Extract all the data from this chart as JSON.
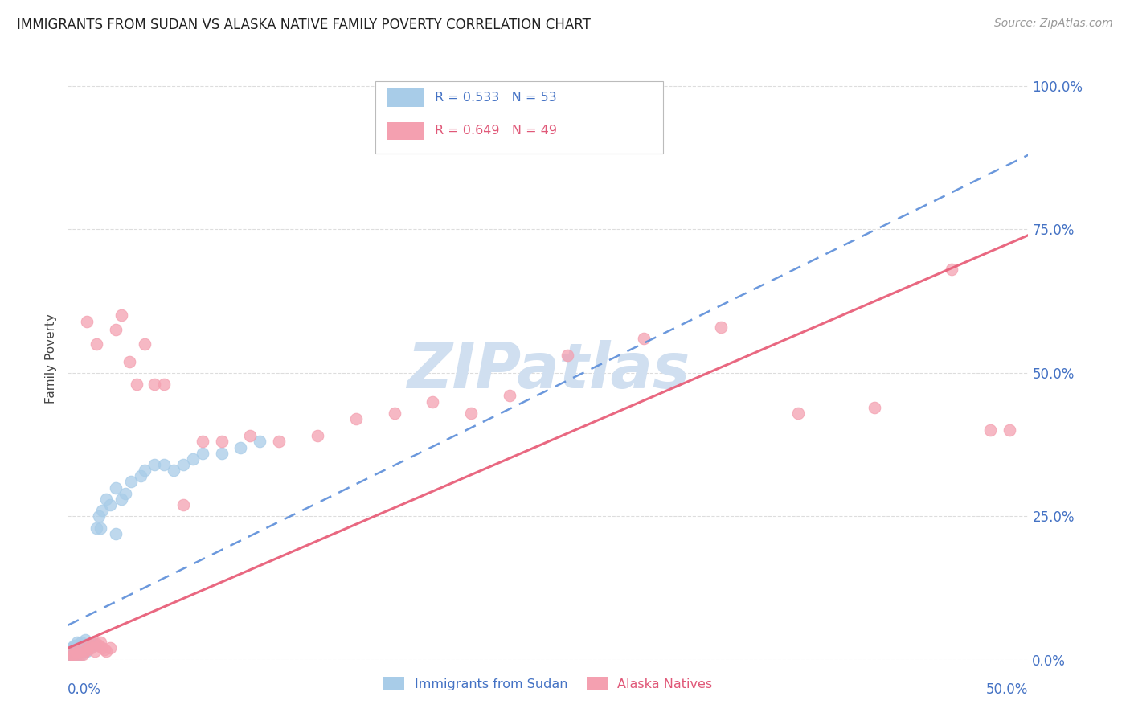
{
  "title": "IMMIGRANTS FROM SUDAN VS ALASKA NATIVE FAMILY POVERTY CORRELATION CHART",
  "source": "Source: ZipAtlas.com",
  "ylabel": "Family Poverty",
  "ytick_labels": [
    "0.0%",
    "25.0%",
    "50.0%",
    "75.0%",
    "100.0%"
  ],
  "ytick_values": [
    0.0,
    0.25,
    0.5,
    0.75,
    1.0
  ],
  "xlim": [
    0.0,
    0.5
  ],
  "ylim": [
    0.0,
    1.05
  ],
  "blue_color": "#A8CCE8",
  "pink_color": "#F4A0B0",
  "blue_line_color": "#5B8DD9",
  "pink_line_color": "#E8607A",
  "watermark": "ZIPatlas",
  "watermark_color": "#D0DFF0",
  "background_color": "#FFFFFF",
  "grid_color": "#DDDDDD",
  "blue_line_x0": 0.0,
  "blue_line_y0": 0.06,
  "blue_line_x1": 0.5,
  "blue_line_y1": 0.88,
  "pink_line_x0": 0.0,
  "pink_line_y0": 0.02,
  "pink_line_x1": 0.5,
  "pink_line_y1": 0.74,
  "blue_points_x": [
    0.001,
    0.001,
    0.001,
    0.002,
    0.002,
    0.002,
    0.002,
    0.003,
    0.003,
    0.003,
    0.003,
    0.004,
    0.004,
    0.004,
    0.005,
    0.005,
    0.005,
    0.006,
    0.006,
    0.007,
    0.007,
    0.008,
    0.008,
    0.009,
    0.009,
    0.01,
    0.01,
    0.011,
    0.012,
    0.013,
    0.014,
    0.015,
    0.016,
    0.017,
    0.018,
    0.02,
    0.022,
    0.025,
    0.028,
    0.03,
    0.033,
    0.038,
    0.04,
    0.045,
    0.05,
    0.055,
    0.06,
    0.065,
    0.07,
    0.08,
    0.09,
    0.1,
    0.025
  ],
  "blue_points_y": [
    0.005,
    0.01,
    0.015,
    0.005,
    0.008,
    0.012,
    0.02,
    0.005,
    0.01,
    0.015,
    0.025,
    0.005,
    0.018,
    0.025,
    0.01,
    0.018,
    0.03,
    0.015,
    0.025,
    0.01,
    0.03,
    0.015,
    0.025,
    0.02,
    0.035,
    0.015,
    0.025,
    0.02,
    0.028,
    0.03,
    0.025,
    0.23,
    0.25,
    0.23,
    0.26,
    0.28,
    0.27,
    0.3,
    0.28,
    0.29,
    0.31,
    0.32,
    0.33,
    0.34,
    0.34,
    0.33,
    0.34,
    0.35,
    0.36,
    0.36,
    0.37,
    0.38,
    0.22
  ],
  "pink_points_x": [
    0.001,
    0.002,
    0.003,
    0.004,
    0.005,
    0.006,
    0.007,
    0.008,
    0.009,
    0.01,
    0.011,
    0.012,
    0.013,
    0.014,
    0.015,
    0.016,
    0.017,
    0.018,
    0.019,
    0.02,
    0.022,
    0.025,
    0.028,
    0.032,
    0.036,
    0.04,
    0.045,
    0.05,
    0.06,
    0.07,
    0.08,
    0.095,
    0.11,
    0.13,
    0.15,
    0.17,
    0.19,
    0.21,
    0.23,
    0.26,
    0.3,
    0.34,
    0.38,
    0.42,
    0.46,
    0.48,
    0.49,
    0.01,
    0.015
  ],
  "pink_points_y": [
    0.005,
    0.01,
    0.008,
    0.015,
    0.012,
    0.01,
    0.02,
    0.01,
    0.015,
    0.018,
    0.025,
    0.02,
    0.03,
    0.015,
    0.028,
    0.025,
    0.03,
    0.02,
    0.018,
    0.015,
    0.02,
    0.575,
    0.6,
    0.52,
    0.48,
    0.55,
    0.48,
    0.48,
    0.27,
    0.38,
    0.38,
    0.39,
    0.38,
    0.39,
    0.42,
    0.43,
    0.45,
    0.43,
    0.46,
    0.53,
    0.56,
    0.58,
    0.43,
    0.44,
    0.68,
    0.4,
    0.4,
    0.59,
    0.55
  ]
}
